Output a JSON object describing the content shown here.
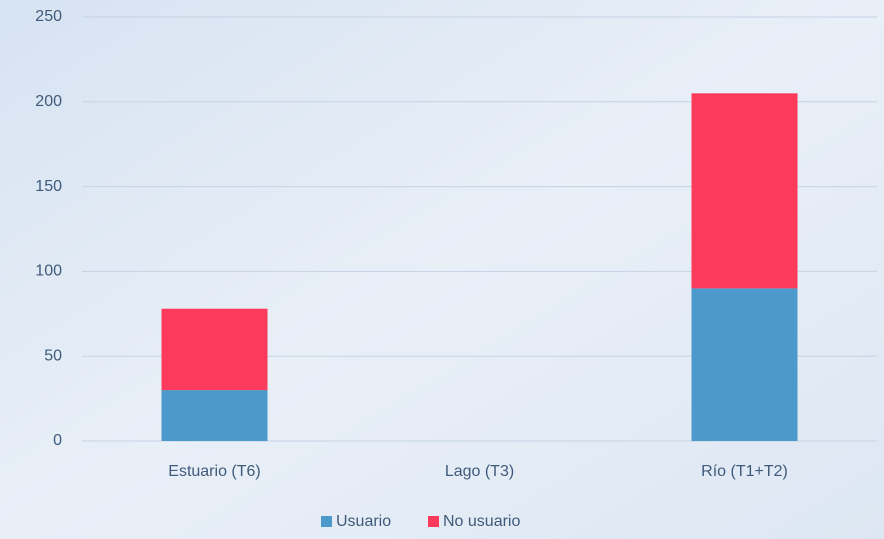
{
  "chart_data": {
    "type": "stacked_bar",
    "categories": [
      "Estuario (T6)",
      "Lago (T3)",
      "Río (T1+T2)"
    ],
    "series": [
      {
        "name": "Usuario",
        "color": "#4b9acb",
        "values": [
          30,
          0,
          90
        ]
      },
      {
        "name": "No usuario",
        "color": "#fc3a5b",
        "values": [
          48,
          0,
          115
        ]
      }
    ],
    "ylim": [
      0,
      250
    ],
    "yticks": [
      0,
      50,
      100,
      150,
      200,
      250
    ],
    "grid": true,
    "legend": "bottom"
  }
}
